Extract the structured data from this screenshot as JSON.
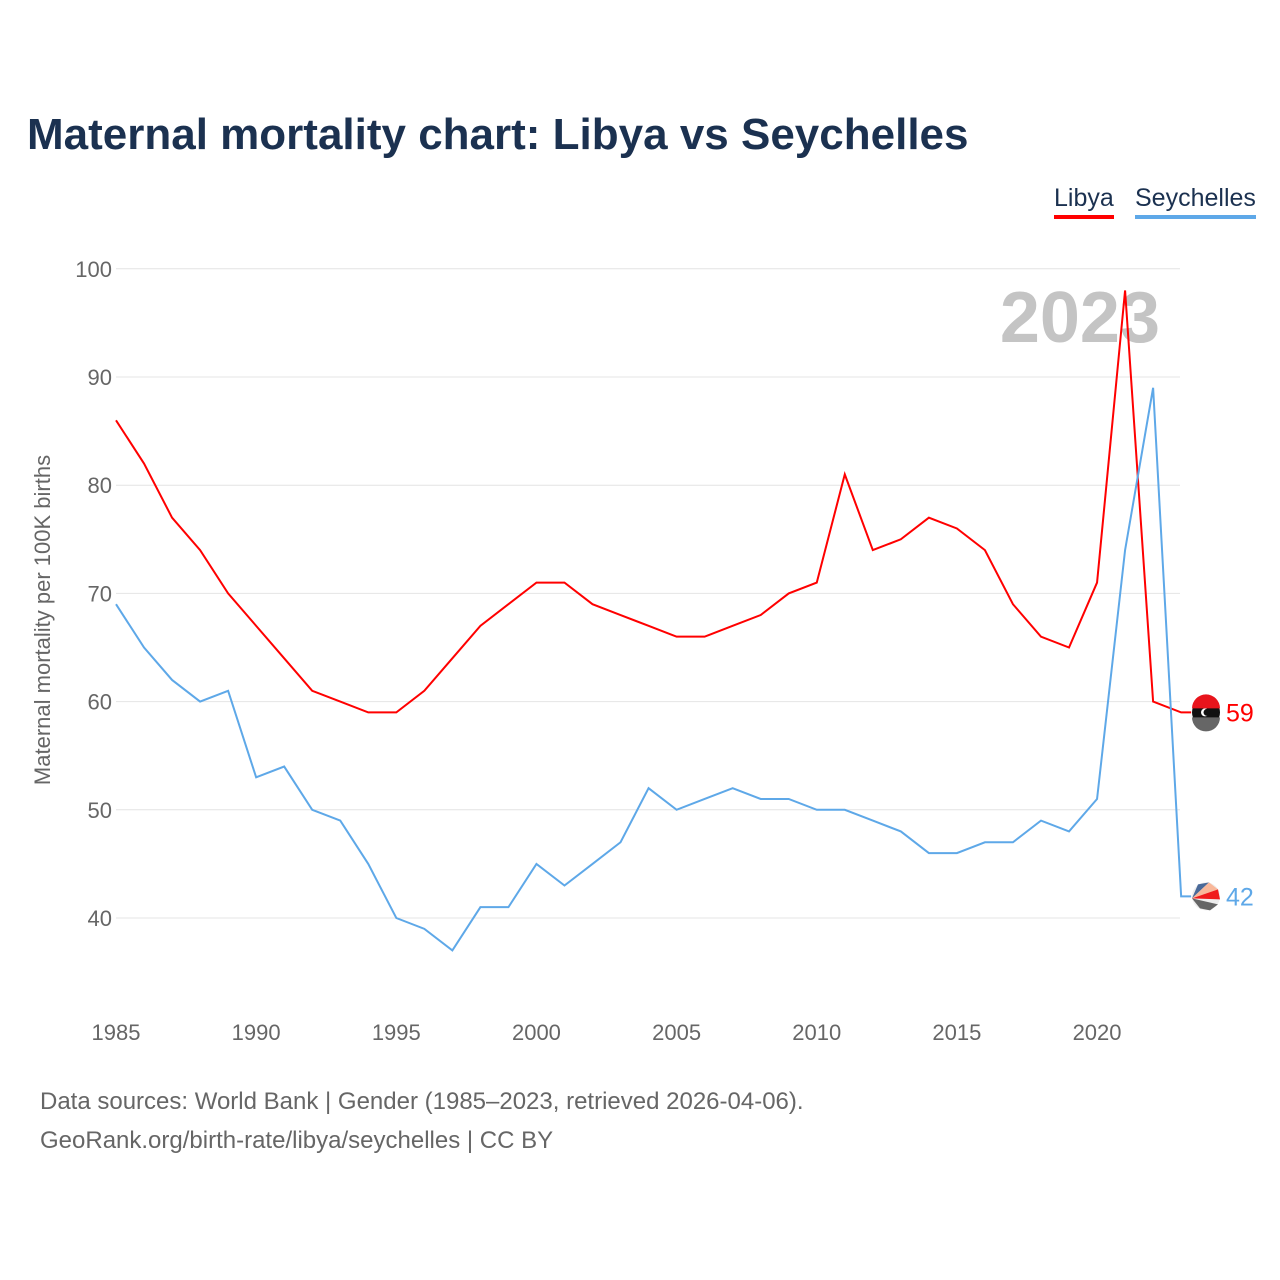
{
  "chart_data": {
    "type": "line",
    "title": "Maternal mortality chart: Libya vs Seychelles",
    "xlabel": "",
    "ylabel": "Maternal mortality per 100K births",
    "xlim": [
      1985,
      2023
    ],
    "ylim": [
      33,
      100
    ],
    "grid": true,
    "legend_placement": "top-right",
    "year_watermark": "2023",
    "x_ticks": [
      "1985",
      "1990",
      "1995",
      "2000",
      "2005",
      "2010",
      "2015",
      "2020"
    ],
    "y_ticks": [
      "40",
      "50",
      "60",
      "70",
      "80",
      "90",
      "100"
    ],
    "x": [
      1985,
      1986,
      1987,
      1988,
      1989,
      1990,
      1991,
      1992,
      1993,
      1994,
      1995,
      1996,
      1997,
      1998,
      1999,
      2000,
      2001,
      2002,
      2003,
      2004,
      2005,
      2006,
      2007,
      2008,
      2009,
      2010,
      2011,
      2012,
      2013,
      2014,
      2015,
      2016,
      2017,
      2018,
      2019,
      2020,
      2021,
      2022,
      2023
    ],
    "series": [
      {
        "name": "Libya",
        "color": "#ff0000",
        "end_label": "59",
        "values": [
          86,
          82,
          77,
          74,
          70,
          67,
          64,
          61,
          60,
          59,
          59,
          61,
          64,
          67,
          69,
          71,
          71,
          69,
          68,
          67,
          66,
          66,
          67,
          68,
          70,
          71,
          81,
          74,
          75,
          77,
          76,
          74,
          69,
          66,
          65,
          71,
          98,
          60,
          59
        ]
      },
      {
        "name": "Seychelles",
        "color": "#5ea8e8",
        "end_label": "42",
        "values": [
          69,
          65,
          62,
          60,
          61,
          53,
          54,
          50,
          49,
          45,
          40,
          39,
          37,
          41,
          41,
          45,
          43,
          45,
          47,
          52,
          50,
          51,
          52,
          51,
          51,
          50,
          50,
          49,
          48,
          46,
          46,
          47,
          47,
          49,
          48,
          51,
          74,
          89,
          42
        ]
      }
    ]
  },
  "footer": {
    "line1": "Data sources: World Bank | Gender (1985–2023, retrieved 2026-04-06).",
    "line2": "GeoRank.org/birth-rate/libya/seychelles | CC BY"
  }
}
